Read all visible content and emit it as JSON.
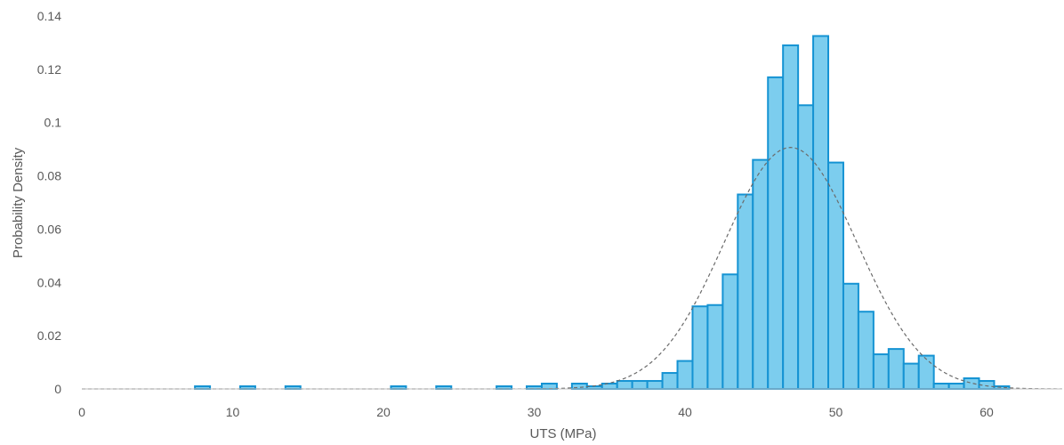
{
  "chart_data": {
    "type": "bar",
    "xlabel": "UTS (MPa)",
    "ylabel": "Probability Density",
    "xlim": [
      0,
      65
    ],
    "ylim": [
      0,
      0.14
    ],
    "x_ticks": [
      "0",
      "10",
      "20",
      "30",
      "40",
      "50",
      "60"
    ],
    "y_ticks": [
      "0",
      "0.02",
      "0.04",
      "0.06",
      "0.08",
      "0.1",
      "0.12",
      "0.14"
    ],
    "bin_width": 1,
    "grid": false,
    "bar_fill_color": "#7ccdee",
    "bar_edge_color": "#1593d3",
    "series": [
      {
        "kind": "histogram",
        "bin_starts": [
          7.5,
          10.5,
          13.5,
          20.5,
          23.5,
          27.5,
          29.5,
          30.5,
          32.5,
          33.5,
          34.5,
          35.5,
          36.5,
          37.5,
          38.5,
          39.5,
          40.5,
          41.5,
          42.5,
          43.5,
          44.5,
          45.5,
          46.5,
          47.5,
          48.5,
          49.5,
          50.5,
          51.5,
          52.5,
          53.5,
          54.5,
          55.5,
          56.5,
          57.5,
          58.5,
          59.5,
          60.5
        ],
        "values": [
          0.001,
          0.001,
          0.001,
          0.001,
          0.001,
          0.001,
          0.001,
          0.002,
          0.002,
          0.001,
          0.002,
          0.003,
          0.003,
          0.003,
          0.006,
          0.0105,
          0.031,
          0.0315,
          0.043,
          0.073,
          0.086,
          0.117,
          0.129,
          0.1065,
          0.1325,
          0.085,
          0.0395,
          0.029,
          0.013,
          0.015,
          0.0095,
          0.0125,
          0.002,
          0.002,
          0.004,
          0.003,
          0.001
        ]
      },
      {
        "kind": "normal_fit",
        "style": "dashed",
        "color": "#6b6b6b",
        "mean": 47,
        "std": 4.4
      }
    ]
  }
}
